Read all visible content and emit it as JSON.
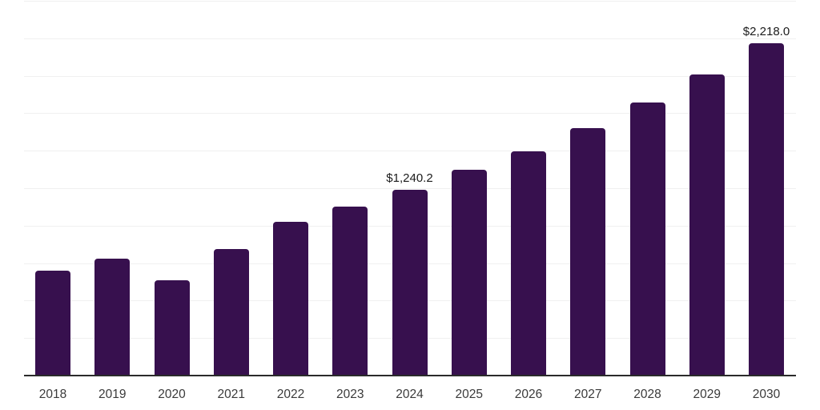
{
  "chart_data": {
    "type": "bar",
    "title": "",
    "xlabel": "",
    "ylabel": "",
    "categories": [
      "2018",
      "2019",
      "2020",
      "2021",
      "2022",
      "2023",
      "2024",
      "2025",
      "2026",
      "2027",
      "2028",
      "2029",
      "2030"
    ],
    "values": [
      700.0,
      780.0,
      636.0,
      844.0,
      1026.0,
      1127.0,
      1240.2,
      1373.0,
      1496.0,
      1651.0,
      1822.0,
      2009.0,
      2218.0
    ],
    "data_labels": {
      "2024": "$1,240.2",
      "2030": "$2,218.0"
    },
    "ylim": [
      0,
      2500
    ],
    "grid_step": 250,
    "grid": true,
    "legend": false,
    "y_axis_labels_visible": false,
    "bar_color": "#37104e",
    "axis_line_color": "#2b2b2b",
    "gridline_color": "#f0f0f0",
    "tick_label_color": "#3a3a3a",
    "value_label_color": "#1b1b1b",
    "background_color": "#ffffff"
  }
}
